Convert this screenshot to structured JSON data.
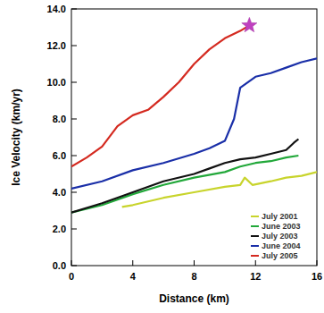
{
  "chart_data": {
    "type": "line",
    "x_label": "Distance (km)",
    "y_label": "Ice Velocity (km/yr)",
    "xlim": [
      0,
      16
    ],
    "xticks": [
      0,
      4,
      8,
      12,
      16
    ],
    "ylim": [
      0,
      14
    ],
    "yticks": [
      {
        "value": 0,
        "label": "0.0"
      },
      {
        "value": 2,
        "label": "2.0"
      },
      {
        "value": 4,
        "label": "4.0"
      },
      {
        "value": 6,
        "label": "6.0"
      },
      {
        "value": 8,
        "label": "8.0"
      },
      {
        "value": 10,
        "label": "10.0"
      },
      {
        "value": 12,
        "label": "12.0"
      },
      {
        "value": 14,
        "label": "14.0"
      }
    ],
    "grid": false,
    "legend": "lower right",
    "series": [
      {
        "name": "July 2001",
        "color": "#c8d42c",
        "x": [
          3.3,
          4,
          6,
          8,
          10,
          11,
          11.3,
          11.8,
          13,
          14,
          15,
          16
        ],
        "values": [
          3.2,
          3.3,
          3.7,
          4.0,
          4.3,
          4.4,
          4.8,
          4.4,
          4.6,
          4.8,
          4.9,
          5.1
        ]
      },
      {
        "name": "June 2003",
        "color": "#22a83a",
        "x": [
          0,
          2,
          4,
          6,
          8,
          10,
          11,
          12,
          13,
          14,
          14.8
        ],
        "values": [
          2.9,
          3.3,
          3.9,
          4.4,
          4.8,
          5.1,
          5.4,
          5.6,
          5.7,
          5.9,
          6.0
        ]
      },
      {
        "name": "July 2003",
        "color": "#111111",
        "x": [
          0,
          2,
          4,
          6,
          8,
          9,
          10,
          11,
          12,
          13,
          14,
          14.5,
          14.8
        ],
        "values": [
          2.9,
          3.4,
          4.0,
          4.6,
          5.0,
          5.3,
          5.6,
          5.8,
          5.9,
          6.1,
          6.3,
          6.7,
          6.9
        ]
      },
      {
        "name": "June 2004",
        "color": "#1a2fa8",
        "x": [
          0,
          2,
          4,
          6,
          8,
          9,
          10,
          10.6,
          11,
          12,
          13,
          14,
          15,
          16
        ],
        "values": [
          4.2,
          4.6,
          5.2,
          5.6,
          6.1,
          6.4,
          6.8,
          8.0,
          9.7,
          10.3,
          10.5,
          10.8,
          11.1,
          11.3
        ]
      },
      {
        "name": "July 2005",
        "color": "#d42a20",
        "marker": "star",
        "x": [
          0,
          1,
          2,
          3,
          4,
          5,
          6,
          7,
          8,
          9,
          10,
          11,
          11.6
        ],
        "values": [
          5.4,
          5.9,
          6.5,
          7.6,
          8.2,
          8.5,
          9.2,
          10.0,
          11.0,
          11.8,
          12.4,
          12.8,
          13.1
        ]
      }
    ]
  }
}
